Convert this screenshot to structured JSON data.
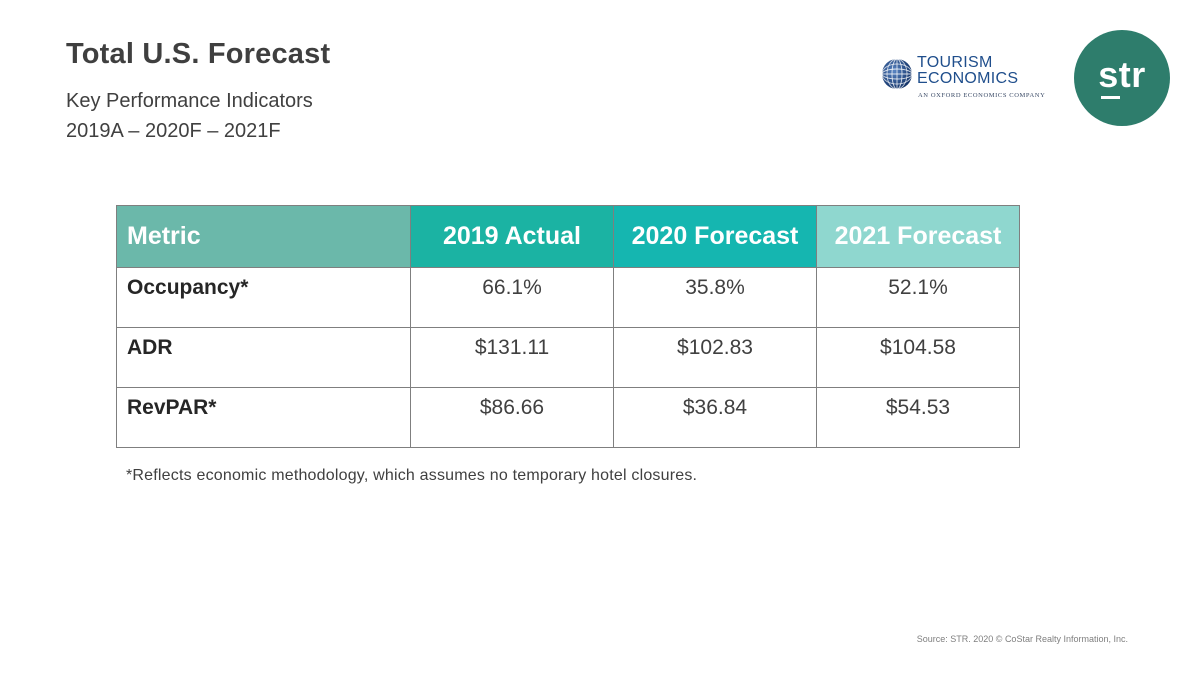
{
  "header": {
    "title": "Total U.S. Forecast",
    "subtitle_line1": "Key Performance Indicators",
    "subtitle_line2": "2019A – 2020F – 2021F"
  },
  "logos": {
    "tourism_economics": {
      "line1": "TOURISM",
      "line2": "ECONOMICS",
      "tagline": "AN OXFORD ECONOMICS COMPANY",
      "color": "#1f4e8c",
      "icon": "globe-icon"
    },
    "str": {
      "text": "str",
      "color": "#2e7d6c"
    }
  },
  "table": {
    "headers": [
      "Metric",
      "2019 Actual",
      "2020 Forecast",
      "2021 Forecast"
    ],
    "header_colors": [
      "#6bb8aa",
      "#1bb3a3",
      "#15b6b0",
      "#8fd7cf"
    ],
    "rows": [
      {
        "metric": "Occupancy*",
        "y2019": "66.1%",
        "y2020": "35.8%",
        "y2021": "52.1%"
      },
      {
        "metric": "ADR",
        "y2019": "$131.11",
        "y2020": "$102.83",
        "y2021": "$104.58"
      },
      {
        "metric": "RevPAR*",
        "y2019": "$86.66",
        "y2020": "$36.84",
        "y2021": "$54.53"
      }
    ]
  },
  "footnote": "*Reflects economic methodology, which assumes no temporary hotel closures.",
  "source": "Source: STR. 2020 © CoStar Realty Information, Inc."
}
